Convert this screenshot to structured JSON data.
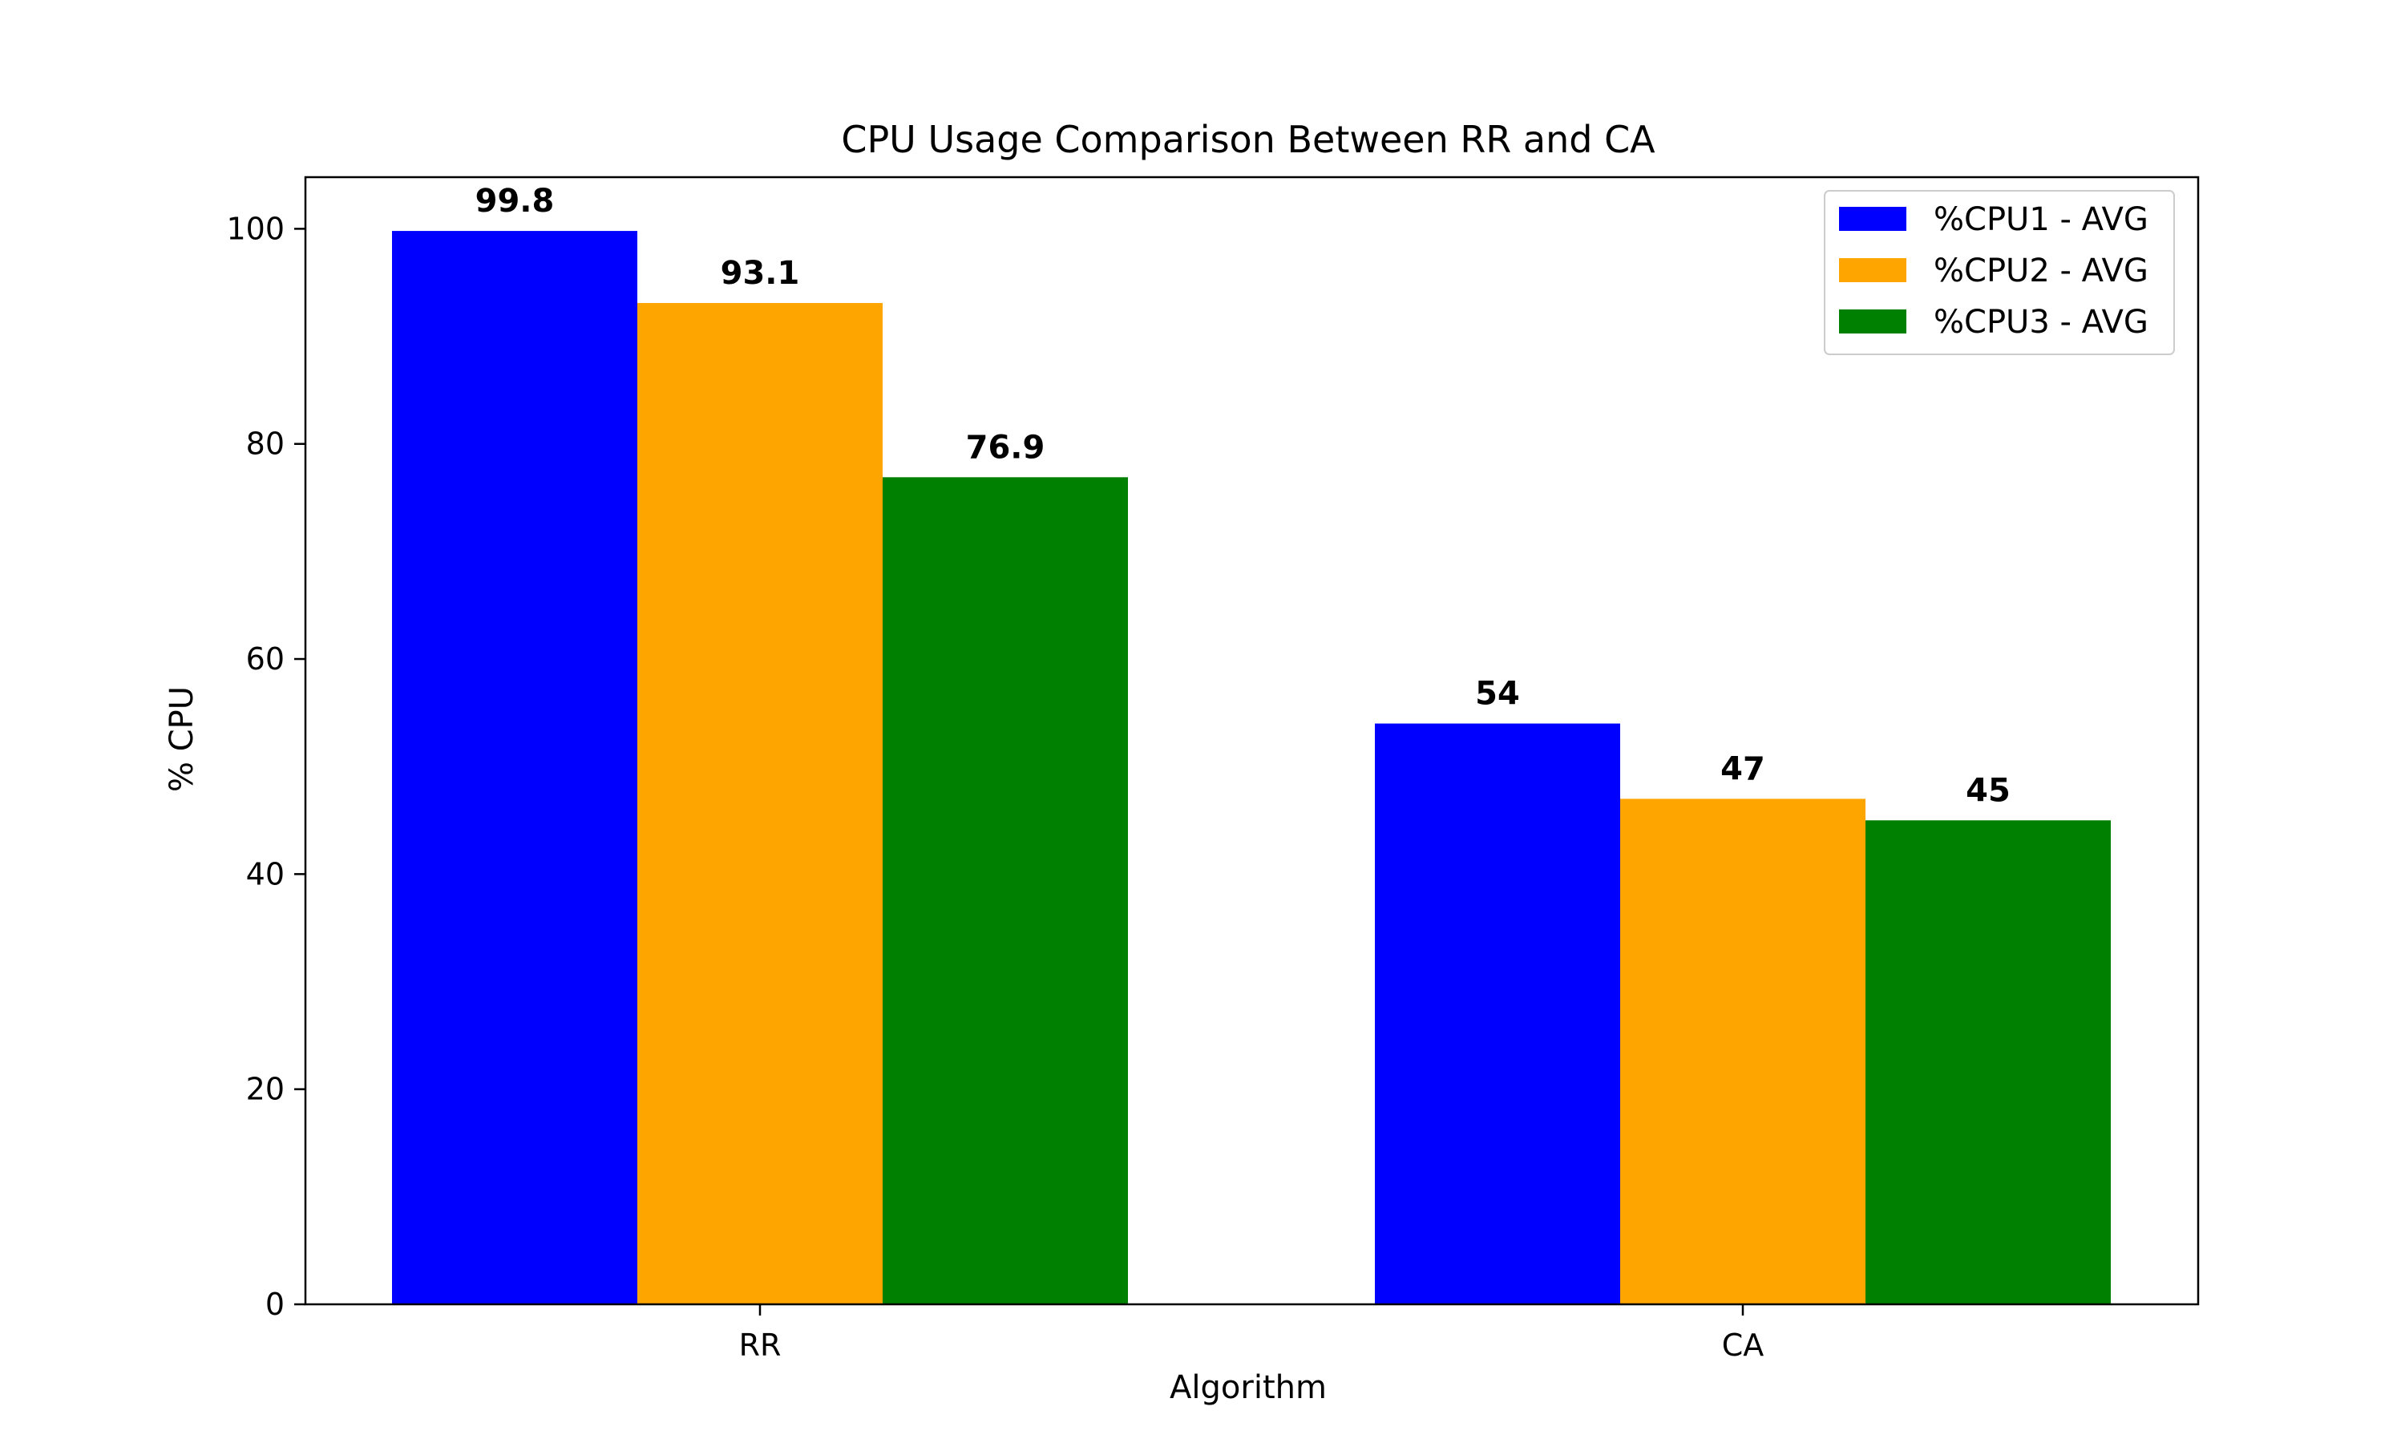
{
  "chart_data": {
    "type": "bar",
    "title": "CPU Usage Comparison Between RR and CA",
    "xlabel": "Algorithm",
    "ylabel": "% CPU",
    "categories": [
      "RR",
      "CA"
    ],
    "series": [
      {
        "name": "%CPU1 - AVG",
        "color": "#0000ff",
        "values": [
          99.8,
          54
        ],
        "labels": [
          "99.8",
          "54"
        ]
      },
      {
        "name": "%CPU2 - AVG",
        "color": "#ffa500",
        "values": [
          93.1,
          47
        ],
        "labels": [
          "93.1",
          "47"
        ]
      },
      {
        "name": "%CPU3 - AVG",
        "color": "#008000",
        "values": [
          76.9,
          45
        ],
        "labels": [
          "76.9",
          "45"
        ]
      }
    ],
    "ylim": [
      0,
      104.8
    ],
    "yticks": [
      0,
      20,
      40,
      60,
      80,
      100
    ],
    "grid": false,
    "legend_position": "top-right"
  }
}
